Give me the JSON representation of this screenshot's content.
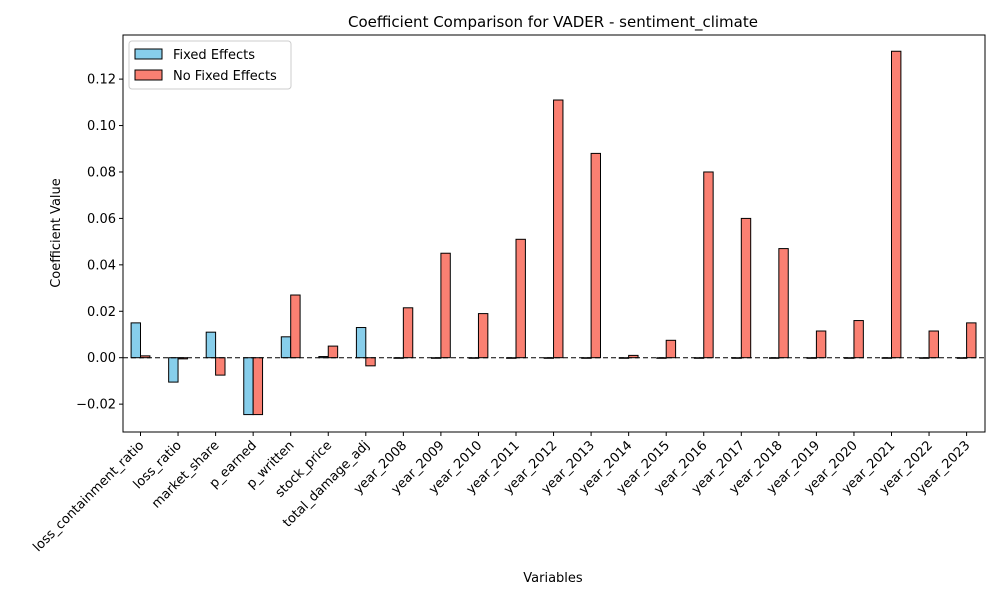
{
  "chart_data": {
    "type": "bar",
    "title": "Coefficient Comparison for VADER - sentiment_climate",
    "xlabel": "Variables",
    "ylabel": "Coefficient Value",
    "ylim": [
      -0.032,
      0.139
    ],
    "yticks": [
      -0.02,
      0.0,
      0.02,
      0.04,
      0.06,
      0.08,
      0.1,
      0.12
    ],
    "ytick_labels": [
      "−0.02",
      "0.00",
      "0.02",
      "0.04",
      "0.06",
      "0.08",
      "0.10",
      "0.12"
    ],
    "grid": false,
    "legend_position": "top-left",
    "reference_line": {
      "y": 0,
      "style": "dashed"
    },
    "categories": [
      "loss_containment_ratio",
      "loss_ratio",
      "market_share",
      "p_earned",
      "p_written",
      "stock_price",
      "total_damage_adj",
      "year_2008",
      "year_2009",
      "year_2010",
      "year_2011",
      "year_2012",
      "year_2013",
      "year_2014",
      "year_2015",
      "year_2016",
      "year_2017",
      "year_2018",
      "year_2019",
      "year_2020",
      "year_2021",
      "year_2022",
      "year_2023"
    ],
    "series": [
      {
        "name": "Fixed Effects",
        "color": "#87CEEB",
        "values": [
          0.015,
          -0.0105,
          0.011,
          -0.0245,
          0.009,
          0.0005,
          0.013,
          0,
          0,
          0,
          0,
          0,
          0,
          0,
          0,
          0,
          0,
          0,
          0,
          0,
          0,
          0,
          0
        ]
      },
      {
        "name": "No Fixed Effects",
        "color": "#FA8072",
        "values": [
          0.0008,
          -0.0005,
          -0.0075,
          -0.0245,
          0.027,
          0.005,
          -0.0035,
          0.0215,
          0.045,
          0.019,
          0.051,
          0.111,
          0.088,
          0.001,
          0.0075,
          0.08,
          0.06,
          0.047,
          0.0115,
          0.016,
          0.132,
          0.0115,
          0.015
        ]
      }
    ]
  }
}
